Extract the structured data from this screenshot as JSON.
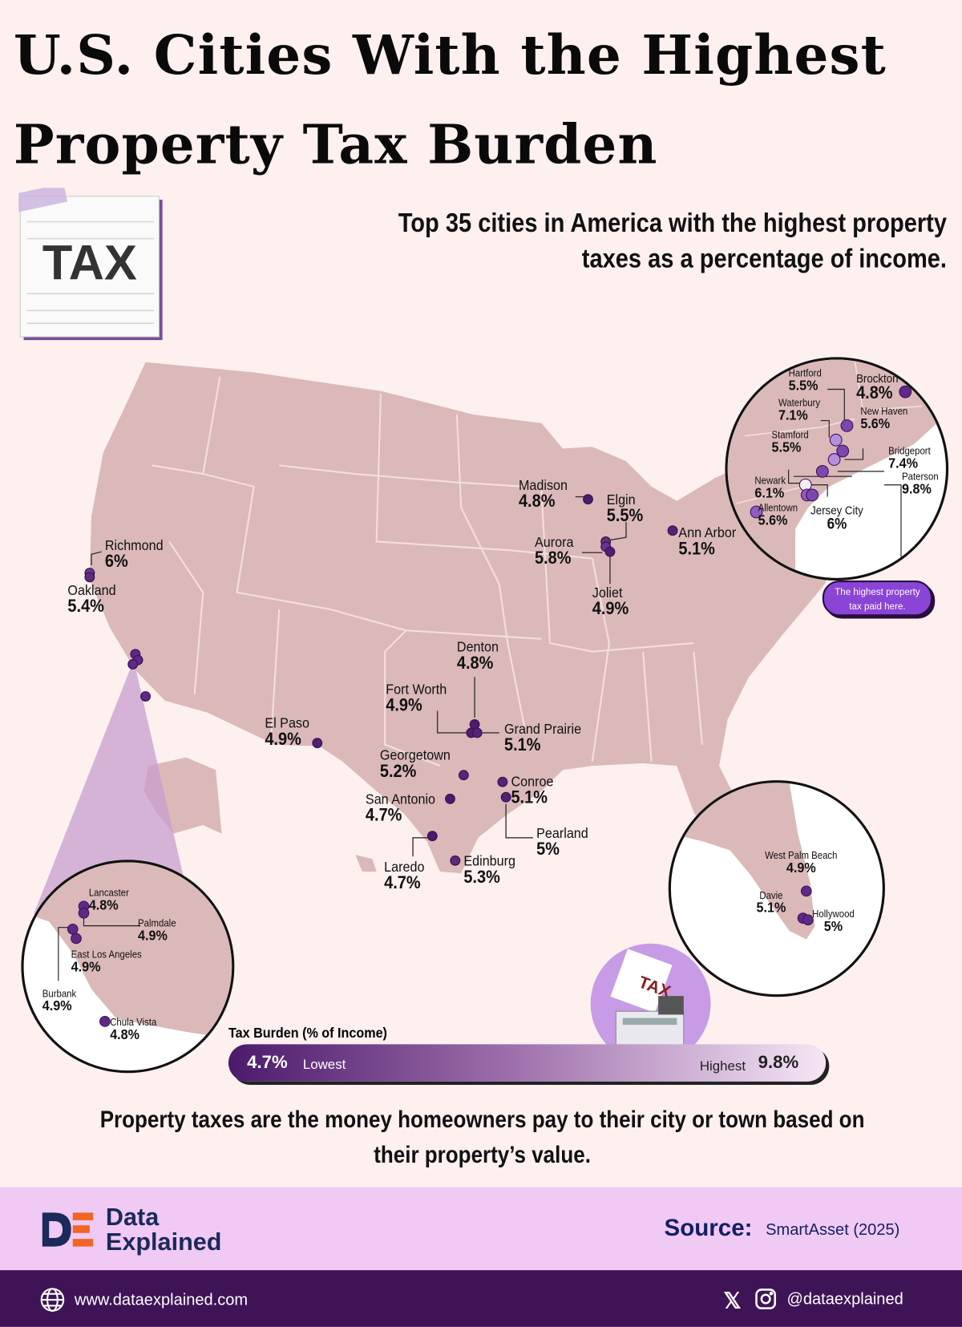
{
  "title_line1": "U.S. Cities With the Highest",
  "title_line2": "Property Tax Burden",
  "subtitle": "Top 35 cities in America with the highest property taxes as a percentage of income.",
  "tax_icon_label": "TAX",
  "callout": "The highest property tax paid here.",
  "legend": {
    "title": "Tax Burden (% of Income)",
    "low_value": "4.7%",
    "low_label": "Lowest",
    "high_label": "Highest",
    "high_value": "9.8%",
    "low_color": "#4b1a6b",
    "high_color": "#f5e6f5"
  },
  "printer_icon_label": "TAX",
  "description": "Property taxes are the money homeowners pay to their city or town based on their property’s value.",
  "footer": {
    "brand_line1": "Data",
    "brand_line2": "Explained",
    "source_label": "Source:",
    "source_value": "SmartAsset (2025)",
    "website": "www.dataexplained.com",
    "handle": "@dataexplained"
  },
  "chart_data": {
    "type": "map",
    "title": "U.S. Cities With the Highest Property Tax Burden",
    "value_unit": "% of income",
    "color_range": [
      4.7,
      9.8
    ],
    "main_map": [
      {
        "city": "Madison",
        "value": "4.8%"
      },
      {
        "city": "Elgin",
        "value": "5.5%"
      },
      {
        "city": "Aurora",
        "value": "5.8%"
      },
      {
        "city": "Joliet",
        "value": "4.9%"
      },
      {
        "city": "Ann Arbor",
        "value": "5.1%"
      },
      {
        "city": "Richmond",
        "value": "6%"
      },
      {
        "city": "Oakland",
        "value": "5.4%"
      },
      {
        "city": "Denton",
        "value": "4.8%"
      },
      {
        "city": "Fort Worth",
        "value": "4.9%"
      },
      {
        "city": "Grand Prairie",
        "value": "5.1%"
      },
      {
        "city": "El Paso",
        "value": "4.9%"
      },
      {
        "city": "Georgetown",
        "value": "5.2%"
      },
      {
        "city": "Conroe",
        "value": "5.1%"
      },
      {
        "city": "San Antonio",
        "value": "4.7%"
      },
      {
        "city": "Pearland",
        "value": "5%"
      },
      {
        "city": "Laredo",
        "value": "4.7%"
      },
      {
        "city": "Edinburg",
        "value": "5.3%"
      }
    ],
    "northeast_inset": [
      {
        "city": "Hartford",
        "value": "5.5%"
      },
      {
        "city": "Brockton",
        "value": "4.8%"
      },
      {
        "city": "Waterbury",
        "value": "7.1%"
      },
      {
        "city": "New Haven",
        "value": "5.6%"
      },
      {
        "city": "Stamford",
        "value": "5.5%"
      },
      {
        "city": "Bridgeport",
        "value": "7.4%"
      },
      {
        "city": "Newark",
        "value": "6.1%"
      },
      {
        "city": "Paterson",
        "value": "9.8%"
      },
      {
        "city": "Allentown",
        "value": "5.6%"
      },
      {
        "city": "Jersey City",
        "value": "6%"
      }
    ],
    "florida_inset": [
      {
        "city": "West Palm Beach",
        "value": "4.9%"
      },
      {
        "city": "Davie",
        "value": "5.1%"
      },
      {
        "city": "Hollywood",
        "value": "5%"
      }
    ],
    "la_inset": [
      {
        "city": "Lancaster",
        "value": "4.8%"
      },
      {
        "city": "Palmdale",
        "value": "4.9%"
      },
      {
        "city": "East Los Angeles",
        "value": "4.9%"
      },
      {
        "city": "Burbank",
        "value": "4.9%"
      },
      {
        "city": "Chula Vista",
        "value": "4.8%"
      }
    ]
  }
}
